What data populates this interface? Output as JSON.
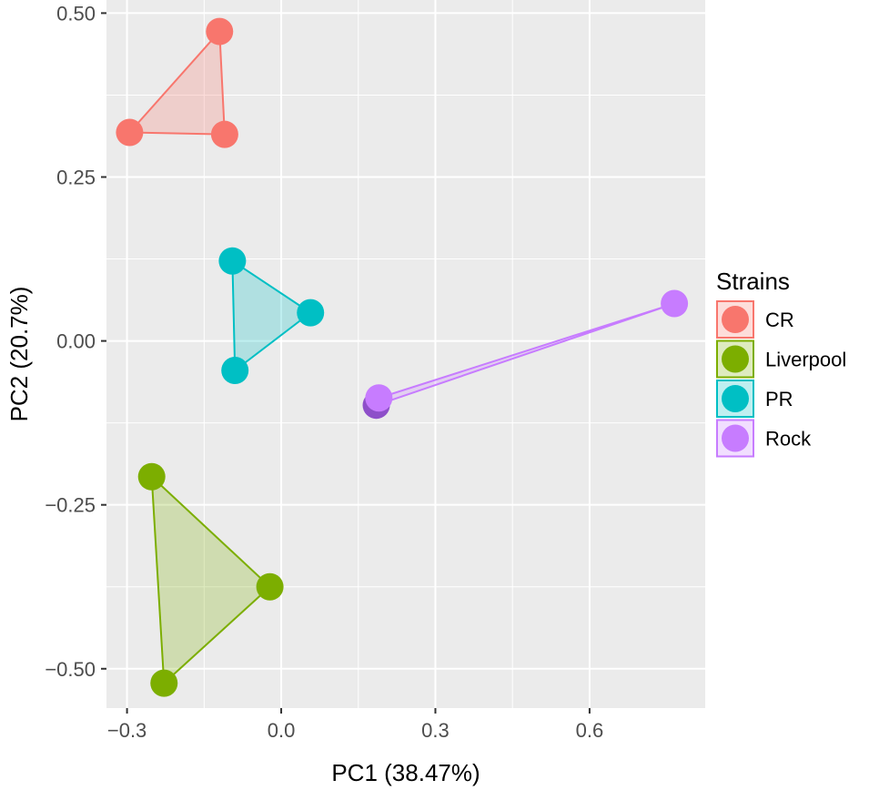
{
  "chart_data": {
    "type": "scatter",
    "title": "",
    "xlabel": "PC1 (38.47%)",
    "ylabel": "PC2 (20.7%)",
    "xlim": [
      -0.34,
      0.825
    ],
    "ylim": [
      -0.56,
      0.52
    ],
    "xticks": [
      -0.3,
      0.0,
      0.3,
      0.6
    ],
    "xtick_labels": [
      "−0.3",
      "0.0",
      "0.3",
      "0.6"
    ],
    "yticks": [
      -0.5,
      -0.25,
      0.0,
      0.25,
      0.5
    ],
    "ytick_labels": [
      "−0.50",
      "−0.25",
      "0.00",
      "0.25",
      "0.50"
    ],
    "grid": true,
    "legend": {
      "title": "Strains",
      "placement": "right"
    },
    "series": [
      {
        "name": "CR",
        "color": "#F8766D",
        "hull": true,
        "points": [
          [
            -0.12,
            0.472
          ],
          [
            -0.295,
            0.318
          ],
          [
            -0.11,
            0.315
          ]
        ]
      },
      {
        "name": "Liverpool",
        "color": "#7CAE00",
        "hull": true,
        "points": [
          [
            -0.252,
            -0.207
          ],
          [
            -0.022,
            -0.375
          ],
          [
            -0.228,
            -0.522
          ]
        ]
      },
      {
        "name": "PR",
        "color": "#00BFC4",
        "hull": true,
        "points": [
          [
            -0.095,
            0.122
          ],
          [
            0.057,
            0.043
          ],
          [
            -0.09,
            -0.045
          ]
        ]
      },
      {
        "name": "Rock",
        "color": "#C77CFF",
        "hull": true,
        "points": [
          [
            0.185,
            -0.098
          ],
          [
            0.19,
            -0.087
          ],
          [
            0.765,
            0.057
          ]
        ]
      }
    ]
  }
}
